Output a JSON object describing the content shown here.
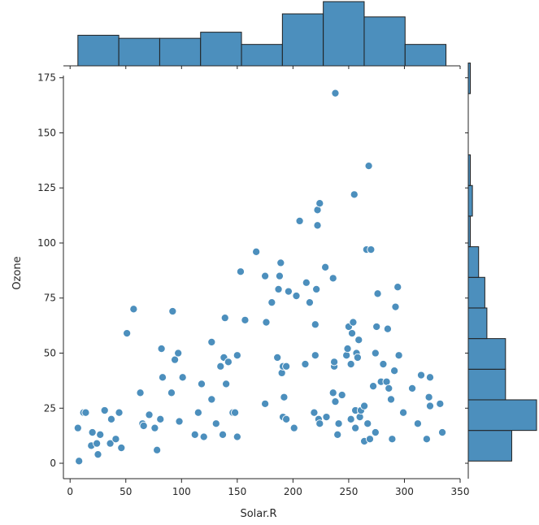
{
  "chart_data": {
    "type": "scatter",
    "variant": "jointplot with marginal histograms",
    "xlabel": "Solar.R",
    "ylabel": "Ozone",
    "xlim": [
      -6,
      350
    ],
    "ylim": [
      -7,
      176
    ],
    "xticks": [
      0,
      50,
      100,
      150,
      200,
      250,
      300,
      350
    ],
    "yticks": [
      0,
      25,
      50,
      75,
      100,
      125,
      150,
      175
    ],
    "grid": false,
    "color": "#4c8fbd",
    "edge_color": "#1f1f1f",
    "points": [
      [
        8,
        1
      ],
      [
        7,
        16
      ],
      [
        12,
        23
      ],
      [
        14,
        23
      ],
      [
        19,
        8
      ],
      [
        20,
        14
      ],
      [
        24,
        9
      ],
      [
        25,
        4
      ],
      [
        27,
        13
      ],
      [
        31,
        24
      ],
      [
        36,
        9
      ],
      [
        37,
        20
      ],
      [
        41,
        11
      ],
      [
        44,
        23
      ],
      [
        46,
        7
      ],
      [
        51,
        59
      ],
      [
        57,
        70
      ],
      [
        63,
        32
      ],
      [
        65,
        18
      ],
      [
        66,
        17
      ],
      [
        71,
        22
      ],
      [
        76,
        16
      ],
      [
        78,
        6
      ],
      [
        81,
        20
      ],
      [
        82,
        52
      ],
      [
        83,
        39
      ],
      [
        91,
        32
      ],
      [
        92,
        69
      ],
      [
        94,
        47
      ],
      [
        97,
        50
      ],
      [
        98,
        19
      ],
      [
        101,
        39
      ],
      [
        112,
        13
      ],
      [
        115,
        23
      ],
      [
        118,
        36
      ],
      [
        120,
        12
      ],
      [
        127,
        29
      ],
      [
        127,
        55
      ],
      [
        131,
        18
      ],
      [
        135,
        44
      ],
      [
        137,
        13
      ],
      [
        138,
        48
      ],
      [
        139,
        66
      ],
      [
        140,
        36
      ],
      [
        142,
        46
      ],
      [
        146,
        23
      ],
      [
        148,
        23
      ],
      [
        150,
        12
      ],
      [
        150,
        49
      ],
      [
        153,
        87
      ],
      [
        157,
        65
      ],
      [
        167,
        96
      ],
      [
        175,
        27
      ],
      [
        175,
        85
      ],
      [
        176,
        64
      ],
      [
        181,
        73
      ],
      [
        186,
        48
      ],
      [
        187,
        79
      ],
      [
        188,
        85
      ],
      [
        189,
        91
      ],
      [
        190,
        41
      ],
      [
        191,
        44
      ],
      [
        191,
        21
      ],
      [
        192,
        30
      ],
      [
        194,
        20
      ],
      [
        194,
        44
      ],
      [
        196,
        78
      ],
      [
        201,
        16
      ],
      [
        203,
        76
      ],
      [
        206,
        110
      ],
      [
        211,
        45
      ],
      [
        212,
        82
      ],
      [
        215,
        73
      ],
      [
        219,
        23
      ],
      [
        220,
        63
      ],
      [
        220,
        49
      ],
      [
        221,
        79
      ],
      [
        222,
        108
      ],
      [
        222,
        115
      ],
      [
        223,
        20
      ],
      [
        224,
        18
      ],
      [
        224,
        118
      ],
      [
        229,
        89
      ],
      [
        230,
        21
      ],
      [
        236,
        84
      ],
      [
        236,
        32
      ],
      [
        237,
        44
      ],
      [
        237,
        46
      ],
      [
        238,
        28
      ],
      [
        238,
        168
      ],
      [
        240,
        13
      ],
      [
        241,
        18
      ],
      [
        244,
        31
      ],
      [
        248,
        49
      ],
      [
        249,
        52
      ],
      [
        250,
        62
      ],
      [
        252,
        20
      ],
      [
        252,
        45
      ],
      [
        253,
        59
      ],
      [
        254,
        64
      ],
      [
        255,
        122
      ],
      [
        256,
        24
      ],
      [
        256,
        16
      ],
      [
        257,
        50
      ],
      [
        258,
        48
      ],
      [
        259,
        56
      ],
      [
        260,
        21
      ],
      [
        261,
        24
      ],
      [
        264,
        10
      ],
      [
        264,
        26
      ],
      [
        266,
        97
      ],
      [
        267,
        18
      ],
      [
        268,
        135
      ],
      [
        269,
        11
      ],
      [
        270,
        97
      ],
      [
        272,
        35
      ],
      [
        274,
        50
      ],
      [
        274,
        14
      ],
      [
        275,
        62
      ],
      [
        276,
        77
      ],
      [
        279,
        37
      ],
      [
        281,
        45
      ],
      [
        284,
        37
      ],
      [
        285,
        61
      ],
      [
        286,
        34
      ],
      [
        288,
        29
      ],
      [
        289,
        11
      ],
      [
        291,
        42
      ],
      [
        292,
        71
      ],
      [
        294,
        80
      ],
      [
        295,
        49
      ],
      [
        299,
        23
      ],
      [
        307,
        34
      ],
      [
        312,
        18
      ],
      [
        315,
        40
      ],
      [
        320,
        11
      ],
      [
        322,
        30
      ],
      [
        323,
        39
      ],
      [
        323,
        26
      ],
      [
        332,
        27
      ],
      [
        334,
        14
      ]
    ],
    "marginal_x_hist": {
      "bin_edges": [
        7,
        43.7,
        80.4,
        117.1,
        153.8,
        190.5,
        227.2,
        263.9,
        300.6,
        337.3
      ],
      "counts": [
        10,
        9,
        9,
        11,
        7,
        17,
        21,
        16,
        7
      ]
    },
    "marginal_y_hist": {
      "bin_edges": [
        1,
        14.9,
        28.8,
        42.7,
        56.6,
        70.5,
        84.4,
        98.3,
        112.2,
        126.1,
        140,
        153.9,
        167.8,
        181.7
      ],
      "counts": [
        21,
        33,
        18,
        18,
        9,
        8,
        5,
        1,
        2,
        1,
        0,
        0,
        1
      ]
    }
  }
}
